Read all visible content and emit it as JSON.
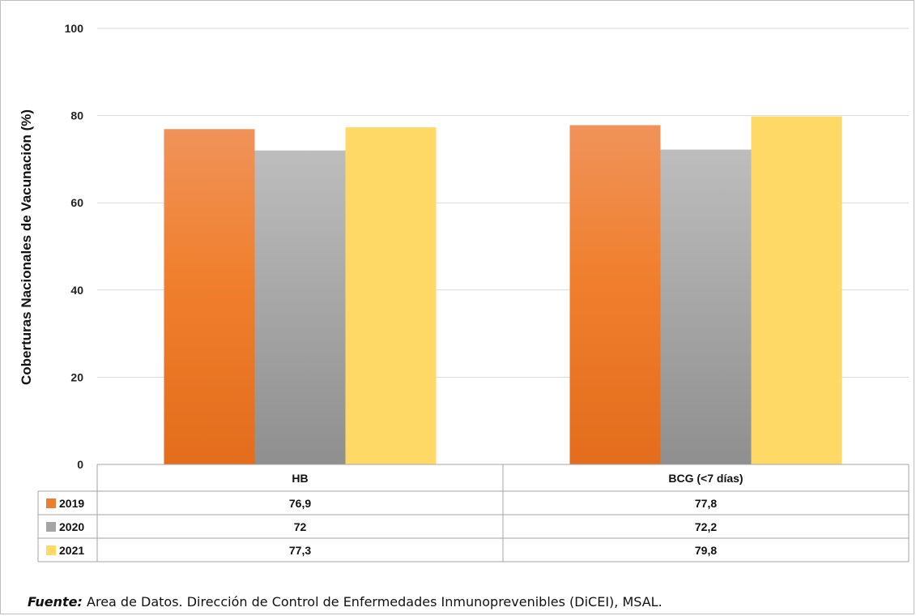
{
  "chart_data": {
    "type": "bar",
    "ylabel": "Coberturas Nacionales de Vacunación (%)",
    "ylim": [
      0,
      100
    ],
    "yticks": [
      0,
      20,
      40,
      60,
      80,
      100
    ],
    "grid": true,
    "categories": [
      "HB",
      "BCG (<7 días)"
    ],
    "series": [
      {
        "name": "2019",
        "values": [
          76.9,
          77.8
        ],
        "labels": [
          "76,9",
          "77,8"
        ],
        "color": "#ed7d31"
      },
      {
        "name": "2020",
        "values": [
          72,
          72.2
        ],
        "labels": [
          "72",
          "72,2"
        ],
        "color": "#a5a5a5"
      },
      {
        "name": "2021",
        "values": [
          77.3,
          79.8
        ],
        "labels": [
          "77,3",
          "79,8"
        ],
        "color": "#ffd966"
      }
    ],
    "data_table": true
  },
  "source": {
    "lead": "Fuente:",
    "text": " Area de Datos. Dirección de Control de Enfermedades Inmunoprevenibles (DiCEI), MSAL."
  }
}
